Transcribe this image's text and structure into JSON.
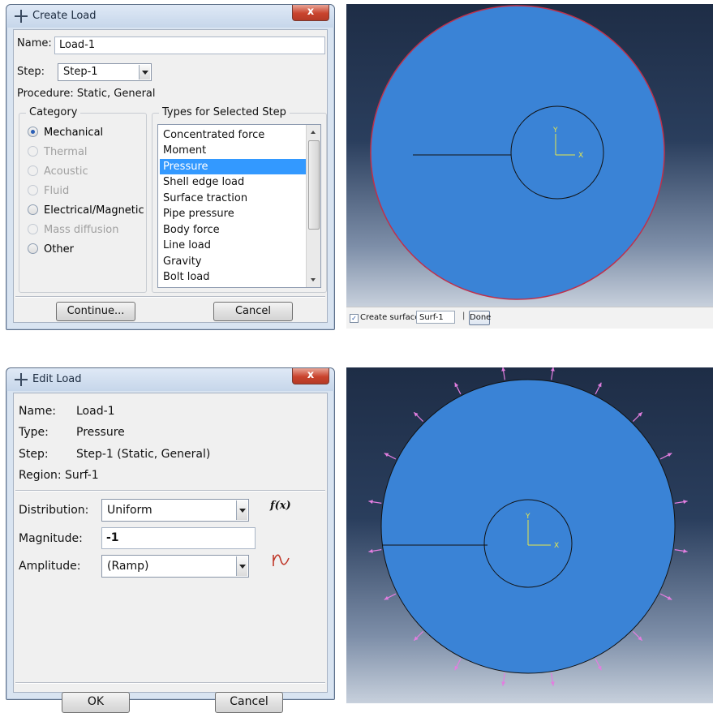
{
  "create_load": {
    "title": "Create Load",
    "close_glyph": "x",
    "name_label": "Name:",
    "name_value": "Load-1",
    "step_label": "Step:",
    "step_value": "Step-1",
    "procedure_label": "Procedure:",
    "procedure_value": "Static, General",
    "category_title": "Category",
    "categories": [
      {
        "label": "Mechanical",
        "selected": true,
        "enabled": true
      },
      {
        "label": "Thermal",
        "selected": false,
        "enabled": false
      },
      {
        "label": "Acoustic",
        "selected": false,
        "enabled": false
      },
      {
        "label": "Fluid",
        "selected": false,
        "enabled": false
      },
      {
        "label": "Electrical/Magnetic",
        "selected": false,
        "enabled": true
      },
      {
        "label": "Mass diffusion",
        "selected": false,
        "enabled": false
      },
      {
        "label": "Other",
        "selected": false,
        "enabled": true
      }
    ],
    "types_title": "Types for Selected Step",
    "types": [
      "Concentrated force",
      "Moment",
      "Pressure",
      "Shell edge load",
      "Surface traction",
      "Pipe pressure",
      "Body force",
      "Line load",
      "Gravity",
      "Bolt load"
    ],
    "selected_type": "Pressure",
    "continue_label": "Continue...",
    "cancel_label": "Cancel"
  },
  "viewport_top": {
    "triad_y": "Y",
    "triad_x": "X",
    "prompt": {
      "checkbox_checked": true,
      "label": "Create surface:",
      "value": "Surf-1",
      "done_label": "Done"
    }
  },
  "edit_load": {
    "title": "Edit Load",
    "close_glyph": "x",
    "name_label": "Name:",
    "name_value": "Load-1",
    "type_label": "Type:",
    "type_value": "Pressure",
    "step_label": "Step:",
    "step_value": "Step-1 (Static, General)",
    "region_label": "Region:",
    "region_value": "Surf-1",
    "distribution_label": "Distribution:",
    "distribution_value": "Uniform",
    "fx_label": "f(x)",
    "magnitude_label": "Magnitude:",
    "magnitude_value": "-1",
    "amplitude_label": "Amplitude:",
    "amplitude_value": "(Ramp)",
    "ok_label": "OK",
    "cancel_label": "Cancel"
  },
  "viewport_bottom": {
    "triad_y": "Y",
    "triad_x": "X"
  },
  "colors": {
    "model_fill": "#3a83d6",
    "selected_edge": "#c0304a",
    "load_arrow": "#e27ee0",
    "triad": "#e8e84a",
    "list_selection": "#3399ff"
  }
}
